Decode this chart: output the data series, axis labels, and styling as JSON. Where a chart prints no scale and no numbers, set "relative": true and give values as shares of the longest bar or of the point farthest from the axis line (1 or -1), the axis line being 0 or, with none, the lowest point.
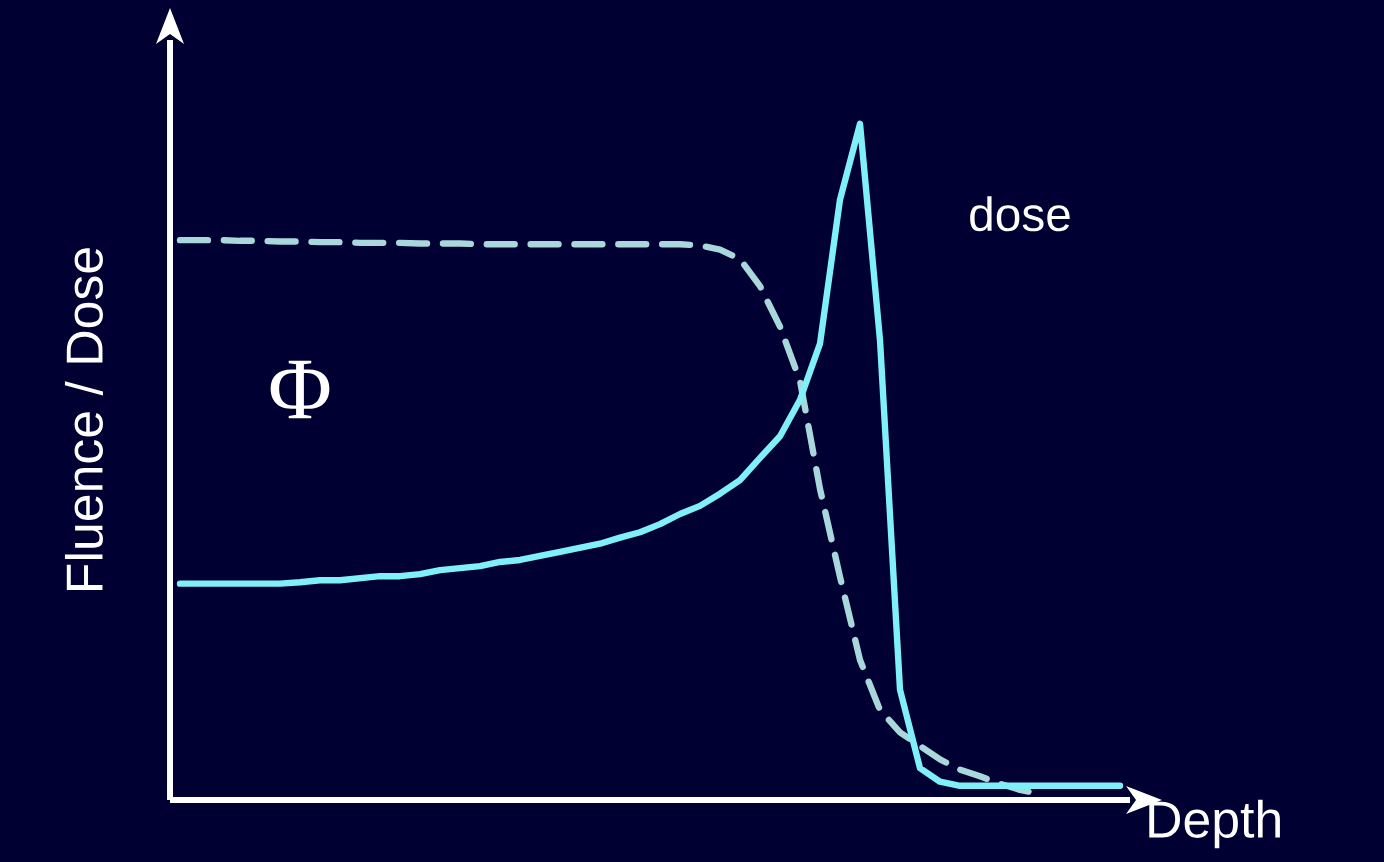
{
  "chart_data": {
    "type": "line",
    "relative": true,
    "xlabel": "Depth",
    "ylabel": "Fluence / Dose",
    "categories": [
      null,
      null,
      null,
      null,
      null,
      null,
      null,
      null,
      null,
      null,
      null,
      null,
      null,
      null,
      null,
      null,
      null,
      null,
      null,
      null,
      null,
      null,
      null,
      null,
      null,
      null,
      null,
      null,
      null,
      null,
      null,
      null,
      null,
      null,
      null,
      null,
      null,
      null,
      null,
      null,
      null,
      null,
      null,
      null,
      null,
      null,
      null,
      null
    ],
    "series": [
      {
        "name": "Φ",
        "color": "#a8d8dc",
        "line_style": "dashed",
        "values": [
          0.828,
          0.828,
          0.828,
          0.827,
          0.827,
          0.826,
          0.826,
          0.825,
          0.825,
          0.824,
          0.824,
          0.824,
          0.823,
          0.823,
          0.823,
          0.822,
          0.822,
          0.822,
          0.822,
          0.822,
          0.822,
          0.822,
          0.822,
          0.822,
          0.822,
          0.822,
          0.82,
          0.814,
          0.8,
          0.76,
          0.7,
          0.62,
          0.46,
          0.33,
          0.207,
          0.133,
          0.1,
          0.08,
          0.06,
          0.045,
          0.035,
          0.024,
          0.015,
          0.009,
          null,
          null,
          null,
          null
        ]
      },
      {
        "name": "dose",
        "color": "#80f0f8",
        "line_style": "solid",
        "values": [
          0.32,
          0.32,
          0.32,
          0.32,
          0.32,
          0.32,
          0.322,
          0.325,
          0.325,
          0.328,
          0.331,
          0.331,
          0.334,
          0.34,
          0.343,
          0.346,
          0.352,
          0.355,
          0.361,
          0.367,
          0.373,
          0.379,
          0.388,
          0.396,
          0.408,
          0.423,
          0.435,
          0.453,
          0.473,
          0.506,
          0.538,
          0.592,
          0.675,
          0.888,
          1,
          0.68,
          0.163,
          0.047,
          0.027,
          0.021,
          0.021,
          0.021,
          0.021,
          0.021,
          0.021,
          0.021,
          0.021,
          0.021
        ]
      }
    ]
  }
}
